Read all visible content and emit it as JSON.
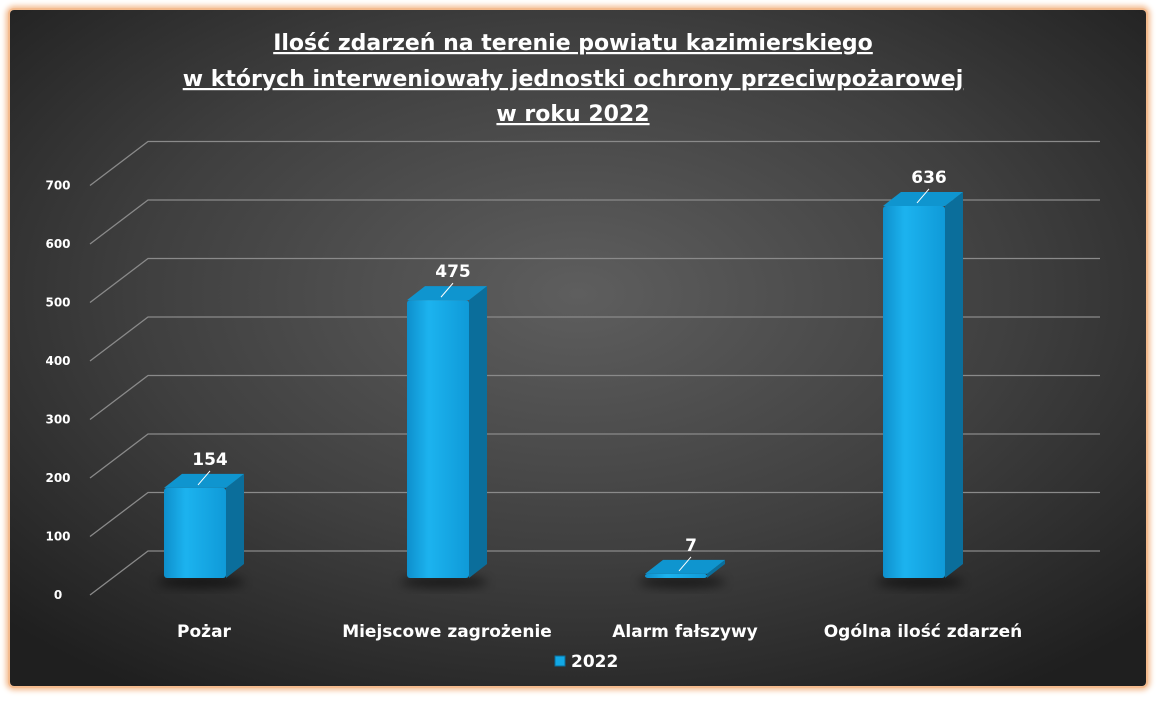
{
  "chart_data": {
    "type": "bar",
    "title": [
      "Ilość zdarzeń na terenie powiatu kazimierskiego",
      " w których interweniowały jednostki ochrony przeciwpożarowej",
      "w roku 2022"
    ],
    "categories": [
      "Pożar",
      "Miejscowe zagrożenie",
      "Alarm fałszywy",
      "Ogólna ilość zdarzeń"
    ],
    "series": [
      {
        "name": "2022",
        "values": [
          154,
          475,
          7,
          636
        ]
      }
    ],
    "ylim": [
      0,
      700
    ],
    "yticks": [
      0,
      100,
      200,
      300,
      400,
      500,
      600,
      700
    ],
    "grid": true,
    "legend": "bottom",
    "xlabel": "",
    "ylabel": "",
    "colors": {
      "bar_front": "#12a8e6",
      "bar_top": "#0f95cf",
      "bar_side": "#0b6e9b",
      "gridline": "#8a8a8a",
      "text": "#ffffff"
    }
  }
}
